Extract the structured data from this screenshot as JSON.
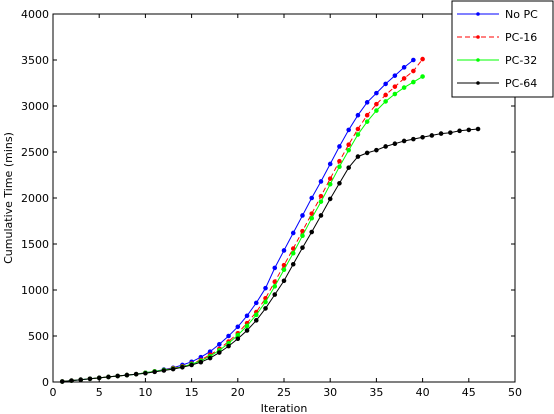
{
  "chart_data": {
    "type": "line",
    "title": "",
    "xlabel": "Iteration",
    "ylabel": "Cumulative Time (mins)",
    "xlim": [
      0,
      50
    ],
    "ylim": [
      0,
      4000
    ],
    "xticks": [
      0,
      5,
      10,
      15,
      20,
      25,
      30,
      35,
      40,
      45,
      50
    ],
    "yticks": [
      0,
      500,
      1000,
      1500,
      2000,
      2500,
      3000,
      3500,
      4000
    ],
    "grid": false,
    "legend_position": "top-right, outside",
    "series": [
      {
        "name": "No PC",
        "color": "#0000ff",
        "line_style": "solid",
        "marker": "dot",
        "x": [
          1,
          2,
          3,
          4,
          5,
          6,
          7,
          8,
          9,
          10,
          11,
          12,
          13,
          14,
          15,
          16,
          17,
          18,
          19,
          20,
          21,
          22,
          23,
          24,
          25,
          26,
          27,
          28,
          29,
          30,
          31,
          32,
          33,
          34,
          35,
          36,
          37,
          38,
          39
        ],
        "y": [
          5,
          15,
          25,
          35,
          45,
          55,
          65,
          75,
          85,
          100,
          115,
          135,
          155,
          185,
          220,
          270,
          330,
          410,
          500,
          600,
          720,
          860,
          1020,
          1240,
          1430,
          1620,
          1810,
          2000,
          2180,
          2370,
          2560,
          2740,
          2900,
          3040,
          3140,
          3240,
          3330,
          3420,
          3500
        ]
      },
      {
        "name": "PC-16",
        "color": "#ff0000",
        "line_style": "dashed",
        "marker": "dot",
        "x": [
          1,
          2,
          3,
          4,
          5,
          6,
          7,
          8,
          9,
          10,
          11,
          12,
          13,
          14,
          15,
          16,
          17,
          18,
          19,
          20,
          21,
          22,
          23,
          24,
          25,
          26,
          27,
          28,
          29,
          30,
          31,
          32,
          33,
          34,
          35,
          36,
          37,
          38,
          39,
          40
        ],
        "y": [
          5,
          15,
          25,
          35,
          45,
          55,
          65,
          75,
          85,
          100,
          115,
          130,
          150,
          170,
          200,
          240,
          295,
          360,
          440,
          530,
          640,
          760,
          910,
          1090,
          1270,
          1450,
          1640,
          1830,
          2020,
          2210,
          2400,
          2580,
          2750,
          2900,
          3020,
          3120,
          3210,
          3300,
          3380,
          3510
        ]
      },
      {
        "name": "PC-32",
        "color": "#00ff00",
        "line_style": "solid",
        "marker": "dot",
        "x": [
          1,
          2,
          3,
          4,
          5,
          6,
          7,
          8,
          9,
          10,
          11,
          12,
          13,
          14,
          15,
          16,
          17,
          18,
          19,
          20,
          21,
          22,
          23,
          24,
          25,
          26,
          27,
          28,
          29,
          30,
          31,
          32,
          33,
          34,
          35,
          36,
          37,
          38,
          39,
          40
        ],
        "y": [
          5,
          15,
          25,
          35,
          45,
          55,
          65,
          75,
          85,
          100,
          115,
          130,
          145,
          165,
          195,
          230,
          280,
          345,
          420,
          510,
          610,
          730,
          870,
          1040,
          1220,
          1400,
          1590,
          1780,
          1960,
          2150,
          2340,
          2520,
          2690,
          2830,
          2950,
          3050,
          3130,
          3200,
          3260,
          3320
        ]
      },
      {
        "name": "PC-64",
        "color": "#000000",
        "line_style": "solid",
        "marker": "dot",
        "x": [
          1,
          2,
          3,
          4,
          5,
          6,
          7,
          8,
          9,
          10,
          11,
          12,
          13,
          14,
          15,
          16,
          17,
          18,
          19,
          20,
          21,
          22,
          23,
          24,
          25,
          26,
          27,
          28,
          29,
          30,
          31,
          32,
          33,
          34,
          35,
          36,
          37,
          38,
          39,
          40,
          41,
          42,
          43,
          44,
          45,
          46
        ],
        "y": [
          5,
          15,
          25,
          35,
          45,
          55,
          65,
          75,
          85,
          95,
          110,
          125,
          140,
          160,
          185,
          215,
          260,
          320,
          390,
          470,
          560,
          670,
          800,
          950,
          1100,
          1280,
          1460,
          1630,
          1810,
          1990,
          2160,
          2330,
          2450,
          2490,
          2520,
          2560,
          2590,
          2620,
          2640,
          2660,
          2680,
          2700,
          2710,
          2730,
          2740,
          2750
        ]
      }
    ]
  }
}
